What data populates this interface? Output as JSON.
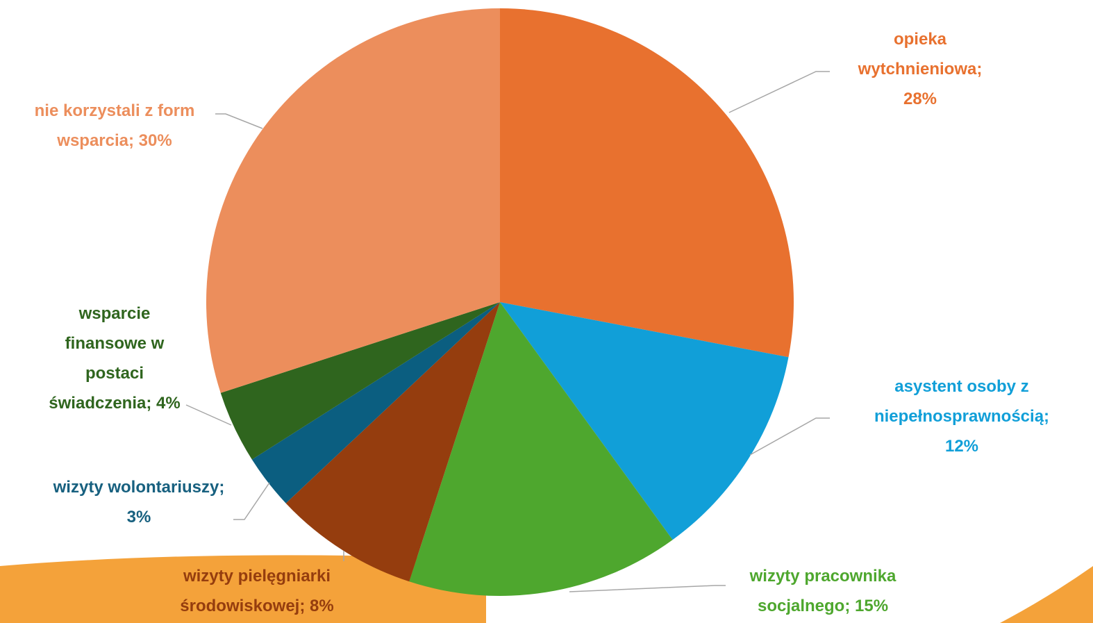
{
  "chart_data": {
    "type": "pie",
    "values": [
      28,
      12,
      15,
      8,
      3,
      4,
      30
    ],
    "value_labels": [
      "opieka wytchnieniowa; 28%",
      "asystent osoby z niepełnosprawnością; 12%",
      "wizyty pracownika socjalnego; 15%",
      "wizyty pielęgniarki środowiskowej; 8%",
      "wizyty wolontariuszy; 3%",
      "wsparcie finansowe w postaci świadczenia; 4%",
      "nie korzystali z form wsparcia; 30%"
    ],
    "colors": [
      "#E8712F",
      "#119FD8",
      "#4EA72E",
      "#953D0E",
      "#0B5E80",
      "#2F651E",
      "#EC8E5C"
    ],
    "label_colors": [
      "#E8712F",
      "#119FD8",
      "#4EA72E",
      "#953D0E",
      "#17607F",
      "#2F651E",
      "#EC8E5C"
    ]
  }
}
